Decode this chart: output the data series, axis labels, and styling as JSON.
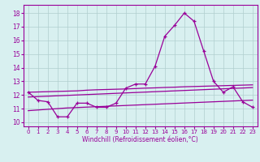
{
  "x": [
    0,
    1,
    2,
    3,
    4,
    5,
    6,
    7,
    8,
    9,
    10,
    11,
    12,
    13,
    14,
    15,
    16,
    17,
    18,
    19,
    20,
    21,
    22,
    23
  ],
  "line_main": [
    12.2,
    11.6,
    11.5,
    10.4,
    10.4,
    11.4,
    11.4,
    11.1,
    11.1,
    11.4,
    12.5,
    12.8,
    12.8,
    14.1,
    16.3,
    17.1,
    18.0,
    17.4,
    15.2,
    13.0,
    12.2,
    12.6,
    11.5,
    11.1
  ],
  "linear_top": [
    12.2,
    12.22,
    12.24,
    12.26,
    12.28,
    12.3,
    12.35,
    12.38,
    12.4,
    12.42,
    12.44,
    12.47,
    12.5,
    12.52,
    12.55,
    12.57,
    12.6,
    12.62,
    12.64,
    12.66,
    12.68,
    12.7,
    12.72,
    12.74
  ],
  "linear_mid": [
    11.85,
    11.88,
    11.91,
    11.94,
    11.97,
    12.0,
    12.03,
    12.06,
    12.09,
    12.12,
    12.15,
    12.18,
    12.21,
    12.24,
    12.27,
    12.3,
    12.33,
    12.36,
    12.39,
    12.42,
    12.45,
    12.48,
    12.51,
    12.54
  ],
  "linear_bot": [
    10.85,
    10.9,
    10.95,
    11.0,
    11.05,
    11.08,
    11.11,
    11.14,
    11.17,
    11.2,
    11.23,
    11.26,
    11.29,
    11.32,
    11.35,
    11.38,
    11.41,
    11.44,
    11.47,
    11.5,
    11.53,
    11.56,
    11.59,
    11.62
  ],
  "line_color": "#990099",
  "bg_color": "#d8f0f0",
  "grid_color": "#b0cece",
  "xlabel": "Windchill (Refroidissement éolien,°C)",
  "ylim": [
    9.7,
    18.6
  ],
  "xlim": [
    -0.5,
    23.5
  ],
  "yticks": [
    10,
    11,
    12,
    13,
    14,
    15,
    16,
    17,
    18
  ],
  "xticks": [
    0,
    1,
    2,
    3,
    4,
    5,
    6,
    7,
    8,
    9,
    10,
    11,
    12,
    13,
    14,
    15,
    16,
    17,
    18,
    19,
    20,
    21,
    22,
    23
  ]
}
